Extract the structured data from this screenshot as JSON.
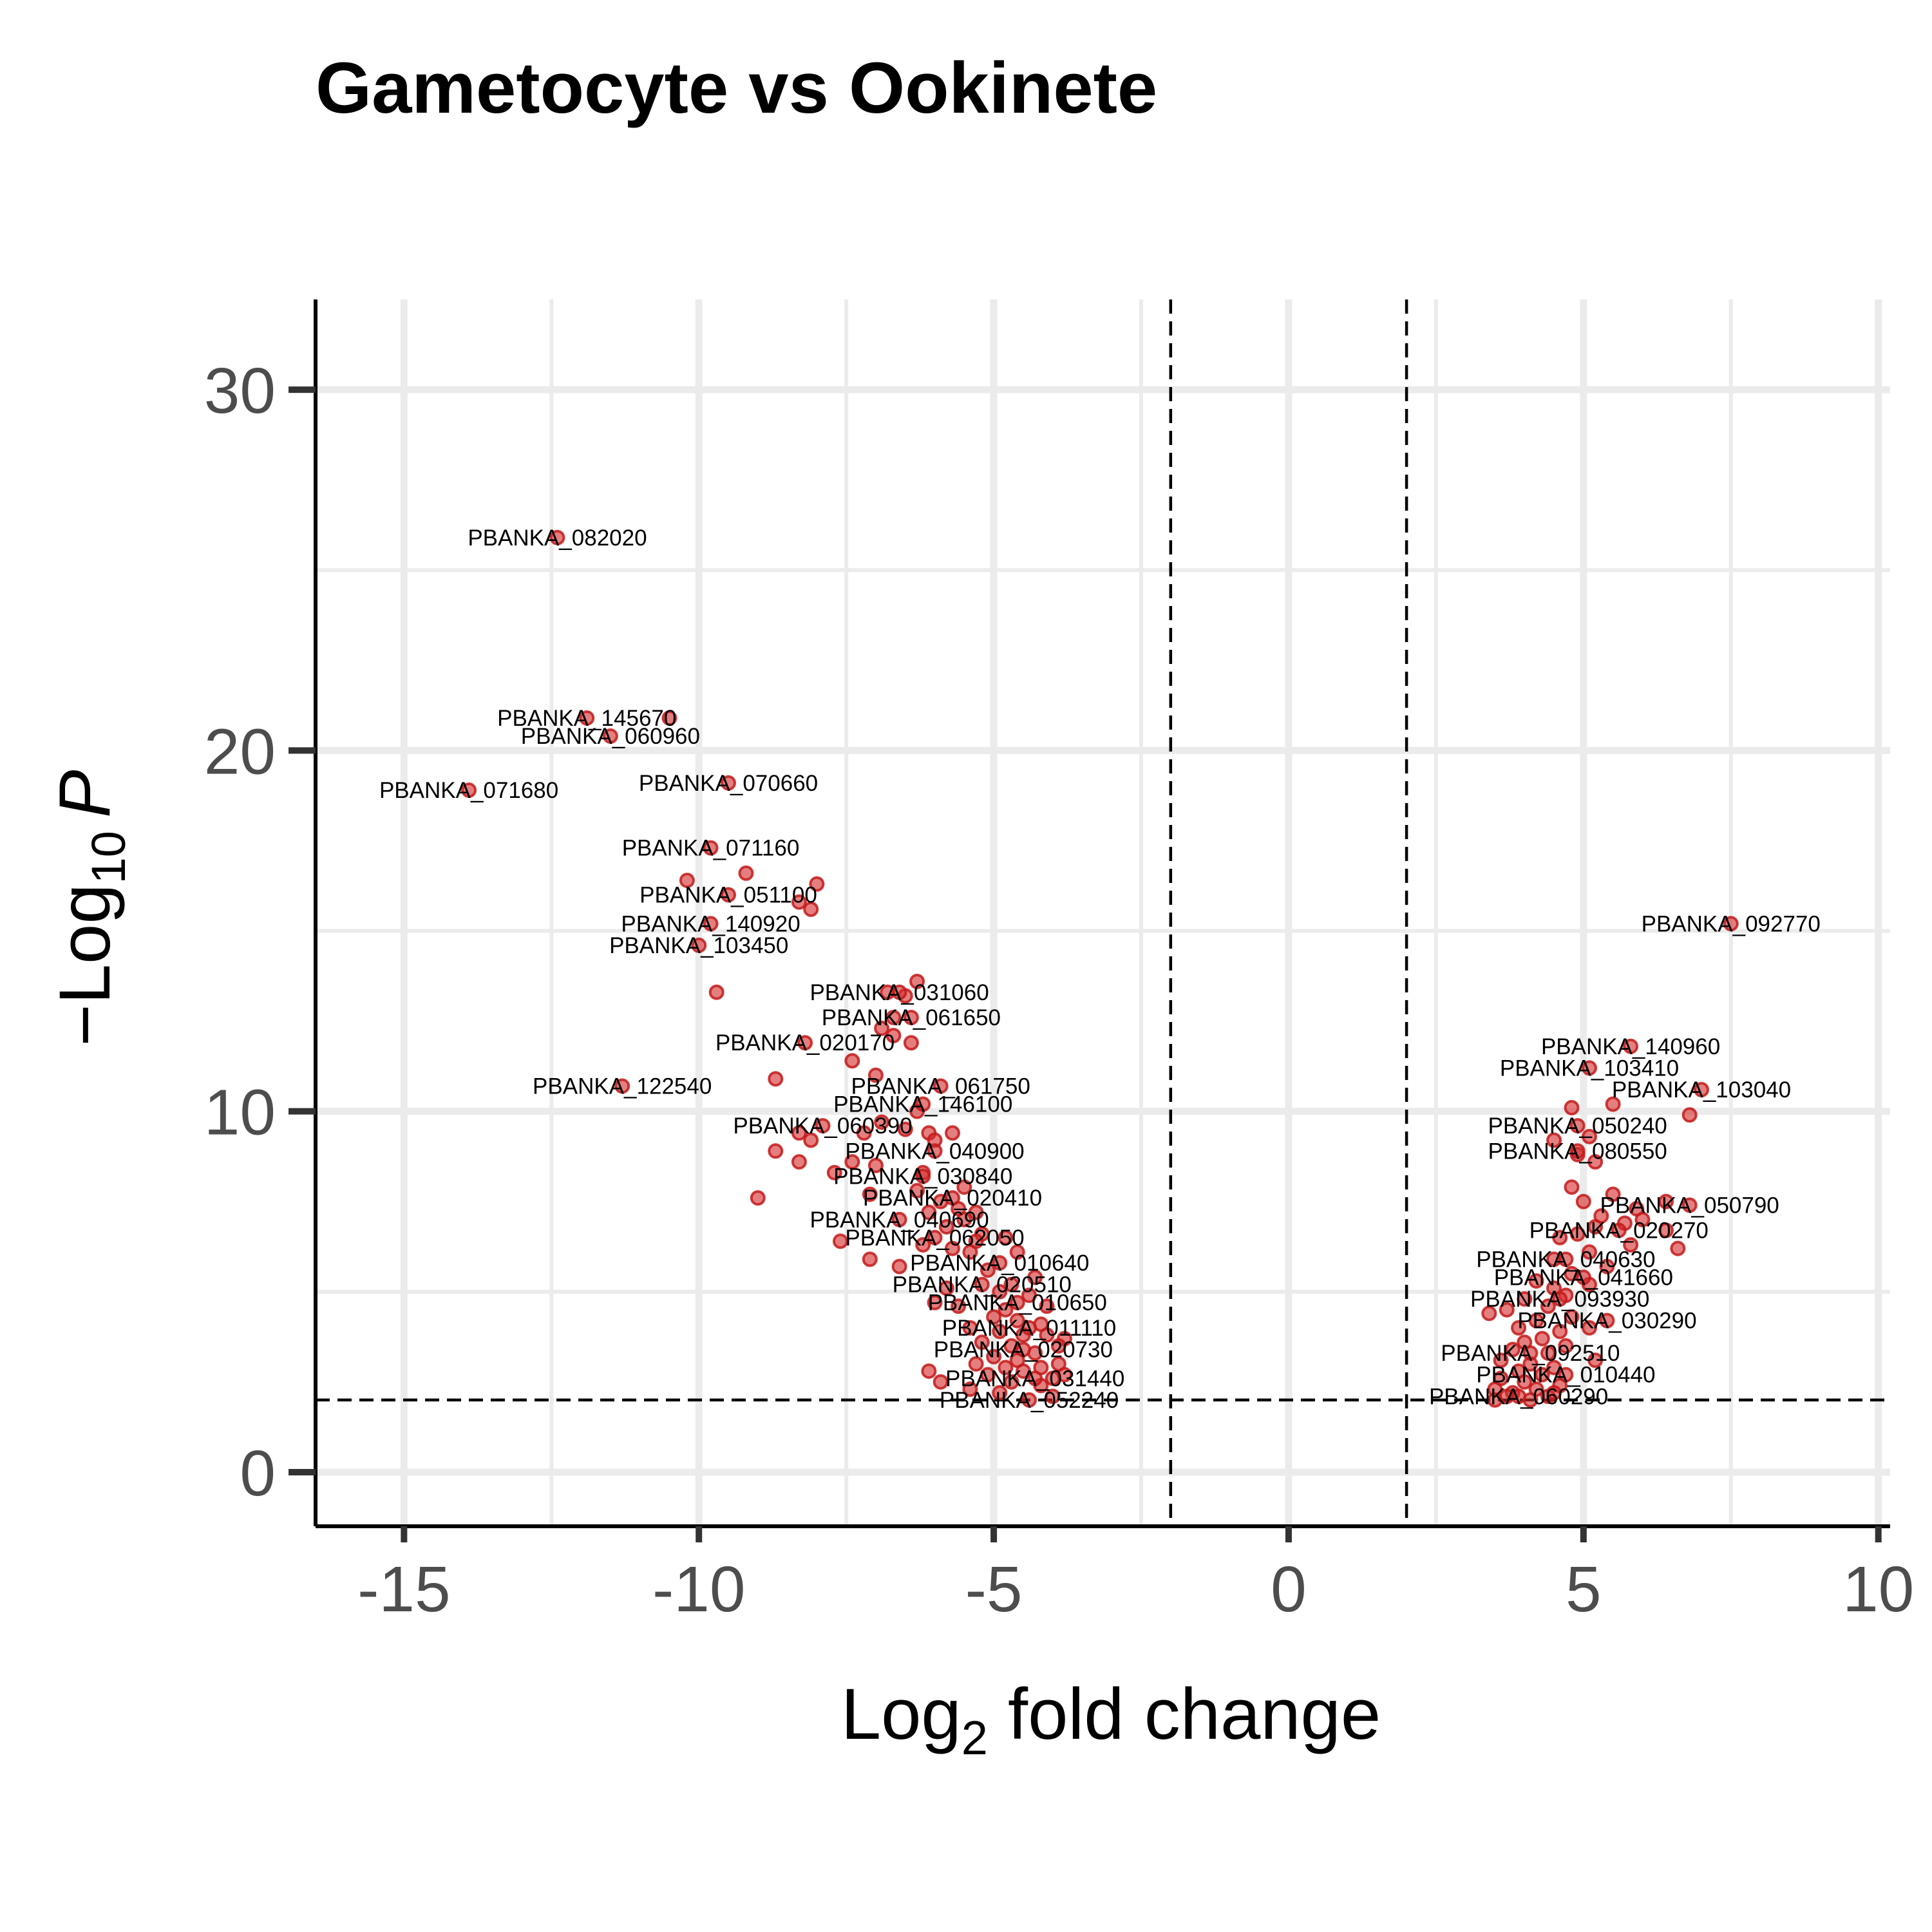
{
  "chart_data": {
    "type": "scatter",
    "title": "Gametocyte vs Ookinete",
    "xlabel": {
      "prefix": "Log",
      "subscript": "2",
      "suffix": " fold change"
    },
    "ylabel": {
      "prefix": "−Log",
      "subscript": "10",
      "italic": "P"
    },
    "xlim": [
      -16.5,
      10.2
    ],
    "ylim": [
      -1.5,
      32.5
    ],
    "xticks": [
      {
        "value": -15,
        "label": "-15"
      },
      {
        "value": -10,
        "label": "-10"
      },
      {
        "value": -5,
        "label": "-5"
      },
      {
        "value": 0,
        "label": "0"
      },
      {
        "value": 5,
        "label": "5"
      },
      {
        "value": 10,
        "label": "10"
      }
    ],
    "yticks": [
      {
        "value": 0,
        "label": "0"
      },
      {
        "value": 10,
        "label": "10"
      },
      {
        "value": 20,
        "label": "20"
      },
      {
        "value": 30,
        "label": "30"
      }
    ],
    "grid": true,
    "legend": "none",
    "cutoffs": {
      "fold_change": [
        -2,
        2
      ],
      "p_value_log10": 2
    },
    "point_color": "#d42a2a",
    "labeled_points": [
      {
        "label": "PBANKA_082020",
        "x": -12.4,
        "y": 25.9
      },
      {
        "label": "PBANKA_145670",
        "x": -11.9,
        "y": 20.9
      },
      {
        "label": "PBANKA_060960",
        "x": -11.5,
        "y": 20.4
      },
      {
        "label": "PBANKA_071680",
        "x": -13.9,
        "y": 18.9
      },
      {
        "label": "PBANKA_070660",
        "x": -9.5,
        "y": 19.1
      },
      {
        "label": "PBANKA_071160",
        "x": -9.8,
        "y": 17.3
      },
      {
        "label": "PBANKA_051100",
        "x": -9.5,
        "y": 16.0
      },
      {
        "label": "PBANKA_140920",
        "x": -9.8,
        "y": 15.2
      },
      {
        "label": "PBANKA_103450",
        "x": -10.0,
        "y": 14.6
      },
      {
        "label": "PBANKA_092770",
        "x": 7.5,
        "y": 15.2
      },
      {
        "label": "PBANKA_031060",
        "x": -6.6,
        "y": 13.3
      },
      {
        "label": "PBANKA_061650",
        "x": -6.4,
        "y": 12.6
      },
      {
        "label": "PBANKA_020170",
        "x": -8.2,
        "y": 11.9
      },
      {
        "label": "PBANKA_140960",
        "x": 5.8,
        "y": 11.8
      },
      {
        "label": "PBANKA_103410",
        "x": 5.1,
        "y": 11.2
      },
      {
        "label": "PBANKA_122540",
        "x": -11.3,
        "y": 10.7
      },
      {
        "label": "PBANKA_061750",
        "x": -5.9,
        "y": 10.7
      },
      {
        "label": "PBANKA_103040",
        "x": 7.0,
        "y": 10.6
      },
      {
        "label": "PBANKA_146100",
        "x": -6.2,
        "y": 10.2
      },
      {
        "label": "PBANKA_050240",
        "x": 4.9,
        "y": 9.6
      },
      {
        "label": "PBANKA_060390",
        "x": -7.9,
        "y": 9.6
      },
      {
        "label": "PBANKA_080550",
        "x": 4.9,
        "y": 8.9
      },
      {
        "label": "PBANKA_040900",
        "x": -6.0,
        "y": 8.9
      },
      {
        "label": "PBANKA_030840",
        "x": -6.2,
        "y": 8.2
      },
      {
        "label": "PBANKA_020410",
        "x": -5.7,
        "y": 7.6
      },
      {
        "label": "PBANKA_050790",
        "x": 6.8,
        "y": 7.4
      },
      {
        "label": "PBANKA_040690",
        "x": -6.6,
        "y": 7.0
      },
      {
        "label": "PBANKA_020270",
        "x": 5.6,
        "y": 6.7
      },
      {
        "label": "PBANKA_062050",
        "x": -6.0,
        "y": 6.5
      },
      {
        "label": "PBANKA_040630",
        "x": 4.7,
        "y": 5.9
      },
      {
        "label": "PBANKA_010640",
        "x": -4.9,
        "y": 5.8
      },
      {
        "label": "PBANKA_041660",
        "x": 5.0,
        "y": 5.4
      },
      {
        "label": "PBANKA_020510",
        "x": -5.2,
        "y": 5.2
      },
      {
        "label": "PBANKA_093930",
        "x": 4.6,
        "y": 4.8
      },
      {
        "label": "PBANKA_010650",
        "x": -4.6,
        "y": 4.7
      },
      {
        "label": "PBANKA_030290",
        "x": 5.4,
        "y": 4.2
      },
      {
        "label": "PBANKA_011110",
        "x": -4.4,
        "y": 4.0
      },
      {
        "label": "PBANKA_020730",
        "x": -4.5,
        "y": 3.4
      },
      {
        "label": "PBANKA_092510",
        "x": 4.1,
        "y": 3.3
      },
      {
        "label": "PBANKA_010440",
        "x": 4.7,
        "y": 2.7
      },
      {
        "label": "PBANKA_031440",
        "x": -4.3,
        "y": 2.6
      },
      {
        "label": "PBANKA_060290",
        "x": 3.9,
        "y": 2.1
      },
      {
        "label": "PBANKA_052240",
        "x": -4.4,
        "y": 2.0
      }
    ],
    "points": [
      [
        -10.5,
        20.9
      ],
      [
        -10.2,
        16.4
      ],
      [
        -9.2,
        16.6
      ],
      [
        -8.0,
        16.3
      ],
      [
        -8.3,
        15.8
      ],
      [
        -8.1,
        15.6
      ],
      [
        -9.7,
        13.3
      ],
      [
        -6.3,
        13.6
      ],
      [
        -6.8,
        13.3
      ],
      [
        -6.5,
        13.2
      ],
      [
        -6.7,
        12.6
      ],
      [
        -6.9,
        12.3
      ],
      [
        -6.7,
        12.1
      ],
      [
        -6.4,
        11.9
      ],
      [
        -7.4,
        11.4
      ],
      [
        -7.0,
        11.0
      ],
      [
        -8.7,
        10.9
      ],
      [
        -6.3,
        10.0
      ],
      [
        -6.9,
        9.7
      ],
      [
        -6.5,
        9.5
      ],
      [
        -6.1,
        9.4
      ],
      [
        -5.7,
        9.4
      ],
      [
        -7.2,
        9.4
      ],
      [
        -6.0,
        9.2
      ],
      [
        -8.3,
        9.4
      ],
      [
        -8.1,
        9.2
      ],
      [
        -8.7,
        8.9
      ],
      [
        -8.3,
        8.6
      ],
      [
        -7.4,
        8.6
      ],
      [
        -7.0,
        8.5
      ],
      [
        -7.7,
        8.3
      ],
      [
        -6.2,
        8.3
      ],
      [
        -5.5,
        7.9
      ],
      [
        -6.3,
        7.8
      ],
      [
        -7.1,
        7.7
      ],
      [
        -9.0,
        7.6
      ],
      [
        -5.9,
        7.5
      ],
      [
        -5.6,
        7.3
      ],
      [
        -5.3,
        7.2
      ],
      [
        -6.1,
        7.2
      ],
      [
        -5.5,
        7.0
      ],
      [
        -5.8,
        6.8
      ],
      [
        -5.2,
        6.6
      ],
      [
        -4.8,
        6.5
      ],
      [
        -5.3,
        6.4
      ],
      [
        -7.6,
        6.4
      ],
      [
        -6.2,
        6.3
      ],
      [
        -5.7,
        6.2
      ],
      [
        -5.4,
        6.1
      ],
      [
        -4.6,
        6.1
      ],
      [
        -7.1,
        5.9
      ],
      [
        -6.6,
        5.7
      ],
      [
        -5.1,
        5.6
      ],
      [
        -4.3,
        5.4
      ],
      [
        -4.7,
        5.2
      ],
      [
        -5.8,
        5.1
      ],
      [
        -4.9,
        5.0
      ],
      [
        -4.4,
        4.9
      ],
      [
        -6.0,
        4.7
      ],
      [
        -4.1,
        4.6
      ],
      [
        -5.6,
        4.6
      ],
      [
        -4.8,
        4.5
      ],
      [
        -5.0,
        4.3
      ],
      [
        -4.6,
        4.2
      ],
      [
        -4.2,
        4.1
      ],
      [
        -5.4,
        4.0
      ],
      [
        -4.9,
        3.9
      ],
      [
        -4.5,
        3.8
      ],
      [
        -4.1,
        3.8
      ],
      [
        -3.8,
        3.7
      ],
      [
        -5.2,
        3.6
      ],
      [
        -4.7,
        3.5
      ],
      [
        -3.9,
        3.5
      ],
      [
        -4.3,
        3.3
      ],
      [
        -5.0,
        3.2
      ],
      [
        -4.6,
        3.1
      ],
      [
        -5.3,
        3.0
      ],
      [
        -3.9,
        3.0
      ],
      [
        -4.2,
        2.9
      ],
      [
        -4.8,
        2.9
      ],
      [
        -6.1,
        2.8
      ],
      [
        -4.5,
        2.8
      ],
      [
        -3.8,
        2.7
      ],
      [
        -5.1,
        2.7
      ],
      [
        -4.0,
        2.6
      ],
      [
        -5.9,
        2.5
      ],
      [
        -4.7,
        2.5
      ],
      [
        -4.2,
        2.4
      ],
      [
        -5.4,
        2.3
      ],
      [
        -4.9,
        2.2
      ],
      [
        -4.0,
        2.1
      ],
      [
        4.8,
        10.1
      ],
      [
        5.5,
        10.2
      ],
      [
        6.8,
        9.9
      ],
      [
        4.5,
        9.2
      ],
      [
        5.1,
        9.3
      ],
      [
        4.9,
        8.8
      ],
      [
        5.2,
        8.6
      ],
      [
        4.8,
        7.9
      ],
      [
        5.5,
        7.7
      ],
      [
        5.0,
        7.5
      ],
      [
        6.4,
        7.5
      ],
      [
        5.9,
        7.3
      ],
      [
        5.3,
        7.1
      ],
      [
        6.0,
        7.0
      ],
      [
        5.7,
        6.9
      ],
      [
        5.2,
        6.8
      ],
      [
        6.4,
        6.7
      ],
      [
        4.9,
        6.6
      ],
      [
        4.6,
        6.5
      ],
      [
        5.8,
        6.3
      ],
      [
        6.6,
        6.2
      ],
      [
        5.1,
        6.1
      ],
      [
        4.5,
        5.9
      ],
      [
        5.4,
        5.7
      ],
      [
        4.8,
        5.5
      ],
      [
        4.2,
        5.3
      ],
      [
        5.1,
        5.2
      ],
      [
        4.5,
        5.1
      ],
      [
        4.7,
        4.9
      ],
      [
        4.0,
        4.8
      ],
      [
        4.4,
        4.6
      ],
      [
        3.7,
        4.5
      ],
      [
        3.4,
        4.4
      ],
      [
        4.8,
        4.3
      ],
      [
        4.2,
        4.2
      ],
      [
        5.1,
        4.0
      ],
      [
        3.9,
        4.0
      ],
      [
        4.6,
        3.9
      ],
      [
        4.3,
        3.7
      ],
      [
        4.0,
        3.6
      ],
      [
        4.7,
        3.5
      ],
      [
        3.8,
        3.4
      ],
      [
        4.4,
        3.3
      ],
      [
        5.2,
        3.1
      ],
      [
        3.6,
        3.1
      ],
      [
        4.1,
        3.0
      ],
      [
        4.5,
        2.9
      ],
      [
        3.9,
        2.8
      ],
      [
        4.3,
        2.7
      ],
      [
        3.6,
        2.6
      ],
      [
        4.0,
        2.5
      ],
      [
        4.6,
        2.4
      ],
      [
        3.5,
        2.3
      ],
      [
        4.2,
        2.3
      ],
      [
        3.8,
        2.2
      ],
      [
        4.4,
        2.1
      ],
      [
        3.5,
        2.0
      ],
      [
        4.1,
        2.0
      ],
      [
        3.7,
        2.1
      ],
      [
        4.5,
        2.2
      ]
    ]
  }
}
